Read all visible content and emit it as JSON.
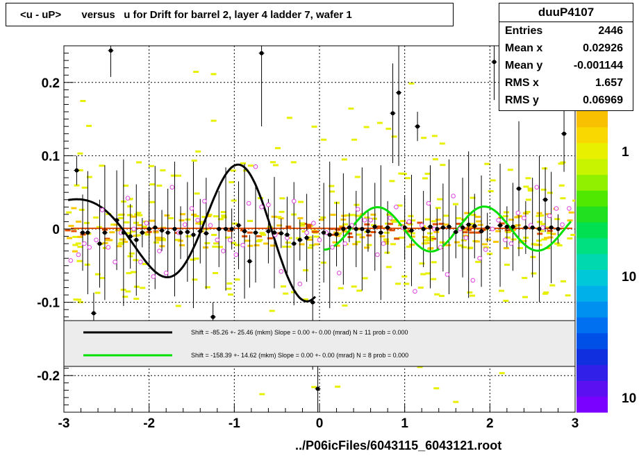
{
  "title": "<u - uP>       versus   u for Drift for barrel 2, layer 4 ladder 7, wafer 1",
  "stats": {
    "name": "duuP4107",
    "rows": [
      {
        "key": "Entries",
        "value": "2446"
      },
      {
        "key": "Mean x",
        "value": "0.02926"
      },
      {
        "key": "Mean y",
        "value": "-0.001144"
      },
      {
        "key": "RMS x",
        "value": "1.657"
      },
      {
        "key": "RMS y",
        "value": "0.06969"
      }
    ]
  },
  "footer": "../P06icFiles/6043115_6043121.root",
  "legend": [
    {
      "color": "#000000",
      "text": "Shift =   -85.26 +- 25.46 (mkm) Slope =     0.00 +- 0.00 (mrad)  N = 11 prob = 0.000"
    },
    {
      "color": "#00e000",
      "text": "Shift =   -158.39 +- 14.62 (mkm) Slope =     0.00 +- 0.00 (mrad)  N = 8 prob = 0.000"
    }
  ],
  "colorbar_labels": [
    "1",
    "10",
    "10"
  ],
  "colors": {
    "black_fit": "#000000",
    "green_fit": "#00e000",
    "mean_points": "#000000",
    "profile_points": "#e040e0",
    "hist_low": "#e6f000",
    "hist_mid": "#f8c800",
    "hist_high": "#e05000"
  },
  "chart_data": {
    "type": "scatter",
    "title": "<u - uP>       versus   u for Drift for barrel 2, layer 4 ladder 7, wafer 1",
    "xlabel": "",
    "ylabel": "",
    "xlim": [
      -3,
      3
    ],
    "ylim": [
      -0.25,
      0.25
    ],
    "x_ticks": [
      "-3",
      "-2",
      "-1",
      "0",
      "1",
      "2",
      "3"
    ],
    "y_ticks": [
      "-0.2",
      "-0.1",
      "0",
      "0.1",
      "0.2"
    ],
    "grid": true,
    "mean_points": [
      [
        -2.85,
        0.08
      ],
      [
        -2.78,
        -0.005
      ],
      [
        -2.72,
        -0.005
      ],
      [
        -2.65,
        -0.115
      ],
      [
        -2.58,
        -0.02
      ],
      [
        -2.52,
        -0.005
      ],
      [
        -2.45,
        0.2435
      ],
      [
        -2.38,
        0.012
      ],
      [
        -2.3,
        -0.005
      ],
      [
        -2.22,
        -0.01
      ],
      [
        -2.15,
        -0.015
      ],
      [
        -2.08,
        -0.005
      ],
      [
        -2.0,
        0.0
      ],
      [
        -1.93,
        0.002
      ],
      [
        -1.85,
        -0.002
      ],
      [
        -1.78,
        -0.005
      ],
      [
        -1.7,
        0.0
      ],
      [
        -1.63,
        -0.005
      ],
      [
        -1.55,
        -0.004
      ],
      [
        -1.48,
        -0.008
      ],
      [
        -1.4,
        -0.003
      ],
      [
        -1.33,
        -0.006
      ],
      [
        -1.25,
        -0.12
      ],
      [
        -1.18,
        0.0
      ],
      [
        -1.1,
        0.0
      ],
      [
        -1.03,
        0.0
      ],
      [
        -0.95,
        0.005
      ],
      [
        -0.88,
        -0.003
      ],
      [
        -0.82,
        -0.044
      ],
      [
        -0.75,
        -0.005
      ],
      [
        -0.68,
        0.24
      ],
      [
        -0.6,
        -0.003
      ],
      [
        -0.53,
        -0.005
      ],
      [
        -0.45,
        -0.006
      ],
      [
        -0.38,
        -0.008
      ],
      [
        -0.3,
        -0.02
      ],
      [
        -0.23,
        -0.015
      ],
      [
        -0.15,
        -0.012
      ],
      [
        -0.08,
        -0.1
      ],
      [
        -0.02,
        -0.218
      ],
      [
        0.05,
        -0.005
      ],
      [
        0.12,
        -0.008
      ],
      [
        0.2,
        -0.007
      ],
      [
        0.28,
        0.0
      ],
      [
        0.35,
        0.002
      ],
      [
        0.43,
        0.0
      ],
      [
        0.5,
        0.0
      ],
      [
        0.57,
        -0.003
      ],
      [
        0.65,
        0.003
      ],
      [
        0.72,
        -0.005
      ],
      [
        0.8,
        0.002
      ],
      [
        0.86,
        0.158
      ],
      [
        0.93,
        0.186
      ],
      [
        1.0,
        0.002
      ],
      [
        1.08,
        -0.002
      ],
      [
        1.15,
        0.14
      ],
      [
        1.22,
        0.0
      ],
      [
        1.3,
        0.003
      ],
      [
        1.38,
        0.0
      ],
      [
        1.45,
        0.002
      ],
      [
        1.52,
        0.003
      ],
      [
        1.6,
        -0.004
      ],
      [
        1.68,
        0.002
      ],
      [
        1.75,
        0.006
      ],
      [
        1.82,
        0.004
      ],
      [
        1.9,
        -0.003
      ],
      [
        1.97,
        0.002
      ],
      [
        2.05,
        0.228
      ],
      [
        2.12,
        0.005
      ],
      [
        2.2,
        0.003
      ],
      [
        2.27,
        0.003
      ],
      [
        2.34,
        0.055
      ],
      [
        2.42,
        0.002
      ],
      [
        2.5,
        0.002
      ],
      [
        2.58,
        0.0
      ],
      [
        2.65,
        0.04
      ],
      [
        2.72,
        0.002
      ],
      [
        2.8,
        0.0
      ],
      [
        2.87,
        0.13
      ]
    ],
    "profile_points": [
      [
        -2.92,
        -0.043
      ],
      [
        -2.83,
        -0.035
      ],
      [
        -2.76,
        -0.02
      ],
      [
        -2.7,
        -0.025
      ],
      [
        -2.62,
        -0.015
      ],
      [
        -2.55,
        0.026
      ],
      [
        -2.48,
        -0.025
      ],
      [
        -2.4,
        -0.045
      ],
      [
        -2.33,
        -0.005
      ],
      [
        -2.25,
        0.042
      ],
      [
        -2.18,
        0.0
      ],
      [
        -2.1,
        -0.045
      ],
      [
        -2.03,
        0.008
      ],
      [
        -1.95,
        -0.065
      ],
      [
        -1.88,
        -0.03
      ],
      [
        -1.8,
        -0.06
      ],
      [
        -1.73,
        0.057
      ],
      [
        -1.65,
        -0.005
      ],
      [
        -1.58,
        0.006
      ],
      [
        -1.5,
        0.028
      ],
      [
        -1.43,
        0.012
      ],
      [
        -1.35,
        0.038
      ],
      [
        -1.28,
        0.005
      ],
      [
        -1.2,
        -0.015
      ],
      [
        -1.13,
        -0.03
      ],
      [
        -1.05,
        -0.015
      ],
      [
        -0.98,
        -0.035
      ],
      [
        -0.9,
        -0.022
      ],
      [
        -0.83,
        0.035
      ],
      [
        -0.75,
        0.085
      ],
      [
        -0.68,
        0.03
      ],
      [
        -0.6,
        0.033
      ],
      [
        -0.52,
        -0.008
      ],
      [
        -0.45,
        -0.058
      ],
      [
        -0.38,
        -0.012
      ],
      [
        -0.3,
        0.038
      ],
      [
        -0.23,
        -0.075
      ],
      [
        -0.15,
        -0.005
      ],
      [
        -0.07,
        0.008
      ],
      [
        0.0,
        -0.015
      ],
      [
        0.08,
        -0.005
      ],
      [
        0.15,
        -0.025
      ],
      [
        0.23,
        -0.06
      ],
      [
        0.3,
        -0.02
      ],
      [
        0.38,
        0.005
      ],
      [
        0.45,
        0.027
      ],
      [
        0.53,
        0.012
      ],
      [
        0.6,
        0.012
      ],
      [
        0.68,
        -0.035
      ],
      [
        0.75,
        -0.02
      ],
      [
        0.83,
        0.015
      ],
      [
        0.9,
        0.03
      ],
      [
        0.98,
        0.002
      ],
      [
        1.05,
        0.01
      ],
      [
        1.12,
        -0.085
      ],
      [
        1.2,
        0.005
      ],
      [
        1.28,
        0.035
      ],
      [
        1.35,
        0.0
      ],
      [
        1.42,
        -0.025
      ],
      [
        1.5,
        -0.062
      ],
      [
        1.57,
        0.045
      ],
      [
        1.65,
        0.0
      ],
      [
        1.72,
        -0.012
      ],
      [
        1.8,
        -0.07
      ],
      [
        1.88,
        -0.04
      ],
      [
        1.95,
        -0.028
      ],
      [
        2.03,
        0.0
      ],
      [
        2.1,
        0.012
      ],
      [
        2.18,
        -0.015
      ],
      [
        2.25,
        -0.02
      ],
      [
        2.33,
        0.022
      ],
      [
        2.4,
        0.015
      ],
      [
        2.48,
        0.005
      ],
      [
        2.55,
        0.057
      ],
      [
        2.62,
        0.002
      ],
      [
        2.7,
        0.018
      ],
      [
        2.78,
        0.028
      ],
      [
        2.85,
        0.006
      ],
      [
        2.93,
        0.028
      ]
    ],
    "fit_black_xrange": [
      -2.95,
      -0.05
    ],
    "fit_green_xrange": [
      0.05,
      2.95
    ]
  }
}
